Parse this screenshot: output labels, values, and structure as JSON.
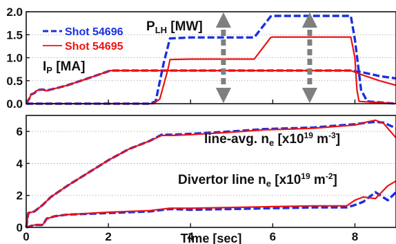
{
  "chart_data": [
    {
      "type": "line",
      "panel": "top",
      "x_range": [
        0,
        9
      ],
      "ylim": [
        0,
        2.0
      ],
      "yticks": [
        "0.0",
        "0.5",
        "1.0",
        "1.5",
        "2.0"
      ],
      "grid": "horizontal dotted",
      "legend_position": "upper-left",
      "legend": [
        {
          "label": "Shot 54696",
          "color": "#1a2fe0",
          "style": "dashed"
        },
        {
          "label": "Shot 54695",
          "color": "#ee1111",
          "style": "solid"
        }
      ],
      "annotations": {
        "plh": {
          "main": "P",
          "sub": "LH",
          "rest": " [MW]"
        },
        "ip": {
          "main": "I",
          "sub": "P",
          "rest": " [MA]"
        }
      },
      "markers": {
        "times": [
          4.8,
          6.9
        ],
        "color": "#7f7f7f",
        "style": "dashed double-headed arrows"
      },
      "series": [
        {
          "name": "Shot 54696",
          "quantity": "I_P [MA]",
          "color": "#1a2fe0",
          "style": "dashed",
          "x": [
            0,
            0.08,
            0.12,
            0.2,
            0.25,
            0.3,
            0.4,
            0.5,
            0.55,
            0.7,
            1.0,
            1.5,
            2.05,
            3.0,
            4.0,
            5.0,
            6.0,
            7.0,
            7.9,
            8.2,
            8.6,
            9.0
          ],
          "y": [
            0.0,
            0.12,
            0.2,
            0.23,
            0.28,
            0.3,
            0.31,
            0.28,
            0.3,
            0.33,
            0.4,
            0.55,
            0.72,
            0.72,
            0.72,
            0.72,
            0.72,
            0.72,
            0.72,
            0.68,
            0.6,
            0.55
          ]
        },
        {
          "name": "Shot 54695",
          "quantity": "I_P [MA]",
          "color": "#ee1111",
          "style": "solid",
          "x": [
            0,
            0.08,
            0.12,
            0.2,
            0.25,
            0.3,
            0.4,
            0.5,
            0.55,
            0.7,
            1.0,
            1.5,
            2.05,
            3.0,
            4.0,
            5.0,
            6.0,
            7.0,
            7.9,
            8.2,
            8.6,
            9.0
          ],
          "y": [
            0.0,
            0.12,
            0.2,
            0.23,
            0.28,
            0.3,
            0.31,
            0.28,
            0.3,
            0.33,
            0.4,
            0.55,
            0.72,
            0.72,
            0.72,
            0.72,
            0.72,
            0.72,
            0.72,
            0.62,
            0.5,
            0.4
          ]
        },
        {
          "name": "Shot 54696",
          "quantity": "P_LH [MW]",
          "color": "#1a2fe0",
          "style": "dashed",
          "x": [
            0,
            3.0,
            3.15,
            3.35,
            3.5,
            4.0,
            5.0,
            5.55,
            5.95,
            6.0,
            7.0,
            7.9,
            8.0,
            8.15,
            8.3,
            9.0
          ],
          "y": [
            0.0,
            0.0,
            0.05,
            0.9,
            1.42,
            1.44,
            1.44,
            1.44,
            1.9,
            1.91,
            1.91,
            1.91,
            1.4,
            0.3,
            0.05,
            0.0
          ]
        },
        {
          "name": "Shot 54695",
          "quantity": "P_LH [MW]",
          "color": "#ee1111",
          "style": "solid",
          "x": [
            0,
            3.1,
            3.25,
            3.45,
            3.5,
            4.0,
            5.0,
            5.55,
            5.95,
            6.0,
            7.0,
            7.9,
            8.0,
            8.05,
            8.1,
            9.0
          ],
          "y": [
            0.0,
            0.0,
            0.1,
            0.75,
            0.96,
            0.97,
            0.97,
            0.97,
            1.44,
            1.45,
            1.45,
            1.45,
            1.0,
            0.3,
            0.05,
            0.0
          ]
        }
      ]
    },
    {
      "type": "line",
      "panel": "bottom",
      "x_range": [
        0,
        9
      ],
      "ylim": [
        0,
        7
      ],
      "yticks": [
        "0",
        "2",
        "4",
        "6"
      ],
      "xticks": [
        "0",
        "2",
        "4",
        "6",
        "8"
      ],
      "xlabel": "Time [sec]",
      "grid": "horizontal dotted",
      "annotations": {
        "lineavg": {
          "main": "line-avg. n",
          "sub": "e",
          "mid": " [x10",
          "sup1": "19",
          "mid2": " m",
          "sup2": "-3",
          "end": "]"
        },
        "divertor": {
          "main": "Divertor line n",
          "sub": "e",
          "mid": " [x10",
          "sup1": "19",
          "mid2": " m",
          "sup2": "-2",
          "end": "]"
        }
      },
      "series": [
        {
          "name": "Shot 54696",
          "quantity": "line-avg. n_e",
          "color": "#1a2fe0",
          "style": "dashed",
          "x": [
            0,
            0.05,
            0.2,
            0.4,
            0.6,
            1.0,
            1.5,
            2.0,
            2.5,
            3.0,
            3.3,
            3.6,
            4.0,
            5.0,
            5.8,
            6.5,
            7.0,
            7.5,
            8.0,
            8.3,
            8.5,
            8.7,
            9.0
          ],
          "y": [
            0.0,
            0.9,
            1.0,
            1.4,
            1.9,
            2.6,
            3.4,
            4.2,
            4.9,
            5.4,
            5.8,
            5.8,
            5.85,
            6.0,
            6.15,
            6.2,
            6.25,
            6.35,
            6.45,
            6.55,
            6.6,
            6.55,
            6.2
          ]
        },
        {
          "name": "Shot 54695",
          "quantity": "line-avg. n_e",
          "color": "#ee1111",
          "style": "solid",
          "x": [
            0,
            0.05,
            0.2,
            0.4,
            0.6,
            1.0,
            1.5,
            2.0,
            2.5,
            3.0,
            3.3,
            3.6,
            4.0,
            5.0,
            5.8,
            6.5,
            7.0,
            7.5,
            8.0,
            8.3,
            8.5,
            8.7,
            9.0
          ],
          "y": [
            0.0,
            0.9,
            1.0,
            1.4,
            1.9,
            2.6,
            3.4,
            4.2,
            4.9,
            5.4,
            5.75,
            5.75,
            5.8,
            5.95,
            6.1,
            6.15,
            6.2,
            6.3,
            6.4,
            6.6,
            6.7,
            6.5,
            5.6
          ]
        },
        {
          "name": "Shot 54696",
          "quantity": "Divertor line n_e",
          "color": "#1a2fe0",
          "style": "dashed",
          "x": [
            0,
            0.2,
            0.4,
            0.5,
            0.7,
            1.0,
            2.0,
            3.0,
            3.5,
            4.0,
            5.0,
            6.0,
            7.0,
            7.8,
            8.0,
            8.2,
            8.5,
            8.8,
            9.0
          ],
          "y": [
            0.0,
            0.15,
            0.15,
            0.55,
            0.7,
            0.8,
            0.9,
            1.0,
            1.15,
            1.1,
            1.15,
            1.2,
            1.25,
            1.25,
            1.4,
            1.6,
            2.2,
            1.7,
            2.2
          ]
        },
        {
          "name": "Shot 54695",
          "quantity": "Divertor line n_e",
          "color": "#ee1111",
          "style": "solid",
          "x": [
            0,
            0.2,
            0.4,
            0.5,
            0.7,
            1.0,
            2.0,
            3.0,
            3.5,
            4.0,
            5.0,
            6.0,
            7.0,
            7.8,
            8.0,
            8.2,
            8.5,
            8.8,
            9.0
          ],
          "y": [
            0.0,
            0.15,
            0.15,
            0.55,
            0.7,
            0.8,
            0.95,
            1.05,
            1.2,
            1.2,
            1.25,
            1.3,
            1.35,
            1.35,
            1.7,
            1.9,
            1.8,
            2.6,
            2.9
          ]
        }
      ]
    }
  ]
}
